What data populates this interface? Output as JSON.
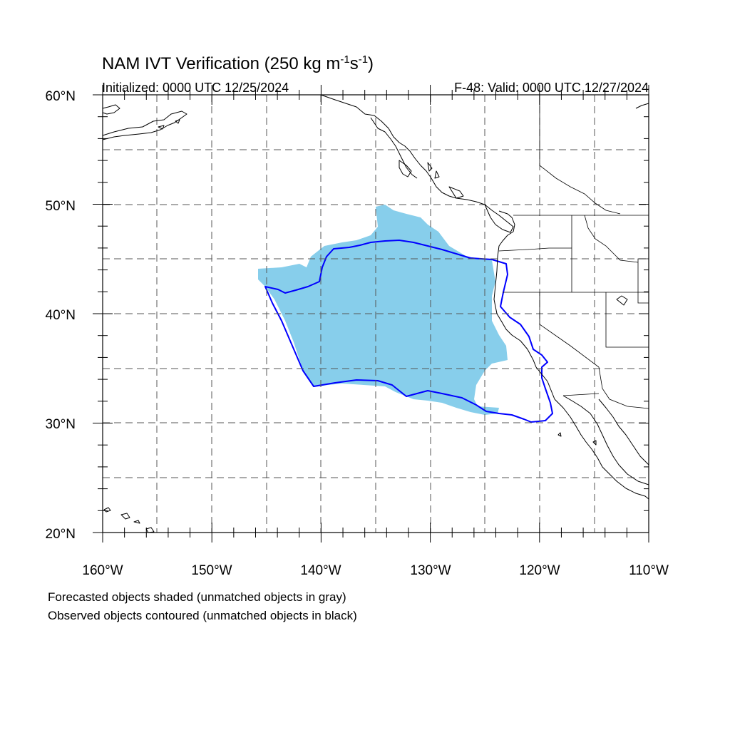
{
  "title": "NAM IVT Verification (250 kg m",
  "title_exp1": "-1",
  "title_mid": "s",
  "title_exp2": "-1",
  "title_end": ")",
  "initialized": "Initialized: 0000 UTC 12/25/2024",
  "valid": "F-48: Valid: 0000 UTC 12/27/2024",
  "lon_labels": [
    "160°W",
    "150°W",
    "140°W",
    "130°W",
    "120°W",
    "110°W"
  ],
  "lat_labels": [
    "20°N",
    "30°N",
    "40°N",
    "50°N",
    "60°N"
  ],
  "notes": {
    "line1": "Forecasted objects shaded (unmatched objects in gray)",
    "line2": "Observed objects contoured (unmatched objects in black)"
  },
  "colors": {
    "forecast_fill": "#87ceeb",
    "observed_contour": "#0000ff",
    "coastline": "#000000",
    "grid": "#555555"
  },
  "map_extent": {
    "lon_min": -160,
    "lon_max": -110,
    "lat_min": 20,
    "lat_max": 60
  }
}
